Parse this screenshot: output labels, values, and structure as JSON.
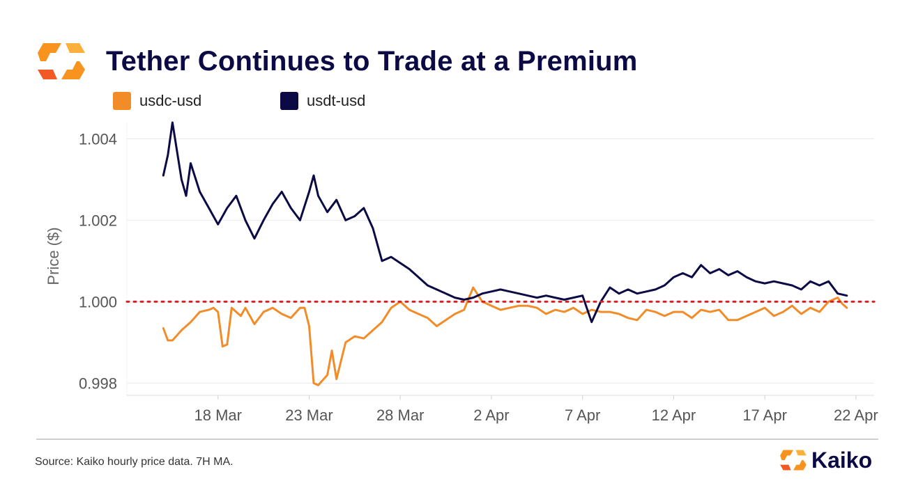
{
  "header": {
    "title": "Tether Continues to Trade at a Premium",
    "logo_icon": "kaiko-logo-icon"
  },
  "footer": {
    "source": "Source: Kaiko hourly price data. 7H MA.",
    "brand": "Kaiko"
  },
  "colors": {
    "usdc": "#f28c28",
    "usdt": "#0b0a44",
    "reference": "#e02020",
    "grid": "#e9e9f0",
    "brand_orange": "#f7931e"
  },
  "chart_data": {
    "type": "line",
    "title": "Tether Continues to Trade at a Premium",
    "xlabel": "",
    "ylabel": "Price ($)",
    "ylim": [
      0.9977,
      1.0044
    ],
    "yticks": [
      0.998,
      1.0,
      1.002,
      1.004
    ],
    "ytick_labels": [
      "0.998",
      "1.000",
      "1.002",
      "1.004"
    ],
    "xlim": [
      "2023-03-13",
      "2023-04-23"
    ],
    "xticks": [
      "2023-03-18",
      "2023-03-23",
      "2023-03-28",
      "2023-04-02",
      "2023-04-07",
      "2023-04-12",
      "2023-04-17",
      "2023-04-22"
    ],
    "xtick_labels": [
      "18 Mar",
      "23 Mar",
      "28 Mar",
      "2 Apr",
      "7 Apr",
      "12 Apr",
      "17 Apr",
      "22 Apr"
    ],
    "grid": true,
    "legend": "top-left",
    "reference_line": {
      "y": 1.0,
      "style": "dotted",
      "color": "#e02020"
    },
    "series": [
      {
        "name": "usdc-usd",
        "color": "#f28c28",
        "points": [
          [
            "2023-03-15 00:00",
            0.99935
          ],
          [
            "2023-03-15 06:00",
            0.99905
          ],
          [
            "2023-03-15 12:00",
            0.99905
          ],
          [
            "2023-03-16 00:00",
            0.9993
          ],
          [
            "2023-03-16 12:00",
            0.9995
          ],
          [
            "2023-03-17 00:00",
            0.99975
          ],
          [
            "2023-03-17 12:00",
            0.9998
          ],
          [
            "2023-03-17 18:00",
            0.99985
          ],
          [
            "2023-03-18 00:00",
            0.99975
          ],
          [
            "2023-03-18 06:00",
            0.9989
          ],
          [
            "2023-03-18 12:00",
            0.99895
          ],
          [
            "2023-03-18 18:00",
            0.99985
          ],
          [
            "2023-03-19 06:00",
            0.99965
          ],
          [
            "2023-03-19 12:00",
            0.99985
          ],
          [
            "2023-03-20 00:00",
            0.99945
          ],
          [
            "2023-03-20 12:00",
            0.99975
          ],
          [
            "2023-03-21 00:00",
            0.99985
          ],
          [
            "2023-03-21 12:00",
            0.9997
          ],
          [
            "2023-03-22 00:00",
            0.9996
          ],
          [
            "2023-03-22 12:00",
            0.99985
          ],
          [
            "2023-03-22 18:00",
            0.99985
          ],
          [
            "2023-03-23 00:00",
            0.9994
          ],
          [
            "2023-03-23 06:00",
            0.998
          ],
          [
            "2023-03-23 12:00",
            0.99795
          ],
          [
            "2023-03-24 00:00",
            0.9982
          ],
          [
            "2023-03-24 06:00",
            0.9988
          ],
          [
            "2023-03-24 12:00",
            0.9981
          ],
          [
            "2023-03-25 00:00",
            0.999
          ],
          [
            "2023-03-25 12:00",
            0.99915
          ],
          [
            "2023-03-26 00:00",
            0.9991
          ],
          [
            "2023-03-26 12:00",
            0.9993
          ],
          [
            "2023-03-27 00:00",
            0.9995
          ],
          [
            "2023-03-27 12:00",
            0.99985
          ],
          [
            "2023-03-28 00:00",
            1.0
          ],
          [
            "2023-03-28 12:00",
            0.9998
          ],
          [
            "2023-03-29 00:00",
            0.9997
          ],
          [
            "2023-03-29 12:00",
            0.9996
          ],
          [
            "2023-03-30 00:00",
            0.9994
          ],
          [
            "2023-03-30 12:00",
            0.99955
          ],
          [
            "2023-03-31 00:00",
            0.9997
          ],
          [
            "2023-03-31 12:00",
            0.9998
          ],
          [
            "2023-04-01 00:00",
            1.00035
          ],
          [
            "2023-04-01 12:00",
            1.0
          ],
          [
            "2023-04-02 00:00",
            0.9999
          ],
          [
            "2023-04-02 12:00",
            0.9998
          ],
          [
            "2023-04-03 00:00",
            0.99985
          ],
          [
            "2023-04-03 12:00",
            0.9999
          ],
          [
            "2023-04-04 00:00",
            0.9999
          ],
          [
            "2023-04-04 12:00",
            0.99985
          ],
          [
            "2023-04-05 00:00",
            0.9997
          ],
          [
            "2023-04-05 12:00",
            0.9998
          ],
          [
            "2023-04-06 00:00",
            0.99975
          ],
          [
            "2023-04-06 12:00",
            0.99985
          ],
          [
            "2023-04-07 00:00",
            0.9997
          ],
          [
            "2023-04-07 12:00",
            0.9998
          ],
          [
            "2023-04-08 00:00",
            0.99975
          ],
          [
            "2023-04-08 12:00",
            0.99975
          ],
          [
            "2023-04-09 00:00",
            0.9997
          ],
          [
            "2023-04-09 12:00",
            0.9996
          ],
          [
            "2023-04-10 00:00",
            0.99955
          ],
          [
            "2023-04-10 12:00",
            0.9998
          ],
          [
            "2023-04-11 00:00",
            0.99975
          ],
          [
            "2023-04-11 12:00",
            0.99965
          ],
          [
            "2023-04-12 00:00",
            0.99975
          ],
          [
            "2023-04-12 12:00",
            0.99975
          ],
          [
            "2023-04-13 00:00",
            0.9996
          ],
          [
            "2023-04-13 12:00",
            0.9998
          ],
          [
            "2023-04-14 00:00",
            0.99975
          ],
          [
            "2023-04-14 12:00",
            0.9998
          ],
          [
            "2023-04-15 00:00",
            0.99955
          ],
          [
            "2023-04-15 12:00",
            0.99955
          ],
          [
            "2023-04-16 00:00",
            0.99965
          ],
          [
            "2023-04-16 12:00",
            0.99975
          ],
          [
            "2023-04-17 00:00",
            0.99985
          ],
          [
            "2023-04-17 12:00",
            0.99965
          ],
          [
            "2023-04-18 00:00",
            0.99975
          ],
          [
            "2023-04-18 12:00",
            0.9999
          ],
          [
            "2023-04-19 00:00",
            0.9997
          ],
          [
            "2023-04-19 12:00",
            0.99985
          ],
          [
            "2023-04-20 00:00",
            0.99975
          ],
          [
            "2023-04-20 12:00",
            1.0
          ],
          [
            "2023-04-21 00:00",
            1.0001
          ],
          [
            "2023-04-21 06:00",
            0.99995
          ],
          [
            "2023-04-21 12:00",
            0.99985
          ]
        ]
      },
      {
        "name": "usdt-usd",
        "color": "#0b0a44",
        "points": [
          [
            "2023-03-15 00:00",
            1.0031
          ],
          [
            "2023-03-15 06:00",
            1.0036
          ],
          [
            "2023-03-15 12:00",
            1.0044
          ],
          [
            "2023-03-16 00:00",
            1.003
          ],
          [
            "2023-03-16 06:00",
            1.0026
          ],
          [
            "2023-03-16 12:00",
            1.0034
          ],
          [
            "2023-03-17 00:00",
            1.0027
          ],
          [
            "2023-03-17 12:00",
            1.0023
          ],
          [
            "2023-03-18 00:00",
            1.0019
          ],
          [
            "2023-03-18 12:00",
            1.0023
          ],
          [
            "2023-03-19 00:00",
            1.0026
          ],
          [
            "2023-03-19 12:00",
            1.002
          ],
          [
            "2023-03-20 00:00",
            1.00155
          ],
          [
            "2023-03-20 12:00",
            1.002
          ],
          [
            "2023-03-21 00:00",
            1.0024
          ],
          [
            "2023-03-21 12:00",
            1.0027
          ],
          [
            "2023-03-22 00:00",
            1.0023
          ],
          [
            "2023-03-22 12:00",
            1.002
          ],
          [
            "2023-03-23 00:00",
            1.0027
          ],
          [
            "2023-03-23 06:00",
            1.0031
          ],
          [
            "2023-03-23 12:00",
            1.0026
          ],
          [
            "2023-03-24 00:00",
            1.0022
          ],
          [
            "2023-03-24 12:00",
            1.0025
          ],
          [
            "2023-03-25 00:00",
            1.002
          ],
          [
            "2023-03-25 12:00",
            1.0021
          ],
          [
            "2023-03-26 00:00",
            1.0023
          ],
          [
            "2023-03-26 12:00",
            1.0018
          ],
          [
            "2023-03-27 00:00",
            1.001
          ],
          [
            "2023-03-27 12:00",
            1.0011
          ],
          [
            "2023-03-28 00:00",
            1.00095
          ],
          [
            "2023-03-28 12:00",
            1.0008
          ],
          [
            "2023-03-29 00:00",
            1.0006
          ],
          [
            "2023-03-29 12:00",
            1.0004
          ],
          [
            "2023-03-30 00:00",
            1.0003
          ],
          [
            "2023-03-30 12:00",
            1.0002
          ],
          [
            "2023-03-31 00:00",
            1.0001
          ],
          [
            "2023-03-31 12:00",
            1.00005
          ],
          [
            "2023-04-01 00:00",
            1.0001
          ],
          [
            "2023-04-01 12:00",
            1.0002
          ],
          [
            "2023-04-02 00:00",
            1.00025
          ],
          [
            "2023-04-02 12:00",
            1.0003
          ],
          [
            "2023-04-03 00:00",
            1.00025
          ],
          [
            "2023-04-03 12:00",
            1.0002
          ],
          [
            "2023-04-04 00:00",
            1.00015
          ],
          [
            "2023-04-04 12:00",
            1.0001
          ],
          [
            "2023-04-05 00:00",
            1.00015
          ],
          [
            "2023-04-05 12:00",
            1.0001
          ],
          [
            "2023-04-06 00:00",
            1.00005
          ],
          [
            "2023-04-06 12:00",
            1.0001
          ],
          [
            "2023-04-07 00:00",
            1.00015
          ],
          [
            "2023-04-07 12:00",
            0.9995
          ],
          [
            "2023-04-08 00:00",
            1.0
          ],
          [
            "2023-04-08 12:00",
            1.00035
          ],
          [
            "2023-04-09 00:00",
            1.0002
          ],
          [
            "2023-04-09 12:00",
            1.0003
          ],
          [
            "2023-04-10 00:00",
            1.0002
          ],
          [
            "2023-04-10 12:00",
            1.00025
          ],
          [
            "2023-04-11 00:00",
            1.0003
          ],
          [
            "2023-04-11 12:00",
            1.0004
          ],
          [
            "2023-04-12 00:00",
            1.0006
          ],
          [
            "2023-04-12 12:00",
            1.0007
          ],
          [
            "2023-04-13 00:00",
            1.0006
          ],
          [
            "2023-04-13 12:00",
            1.0009
          ],
          [
            "2023-04-14 00:00",
            1.0007
          ],
          [
            "2023-04-14 12:00",
            1.0008
          ],
          [
            "2023-04-15 00:00",
            1.00065
          ],
          [
            "2023-04-15 12:00",
            1.00075
          ],
          [
            "2023-04-16 00:00",
            1.0006
          ],
          [
            "2023-04-16 12:00",
            1.0005
          ],
          [
            "2023-04-17 00:00",
            1.00045
          ],
          [
            "2023-04-17 12:00",
            1.0005
          ],
          [
            "2023-04-18 00:00",
            1.00045
          ],
          [
            "2023-04-18 12:00",
            1.0004
          ],
          [
            "2023-04-19 00:00",
            1.0003
          ],
          [
            "2023-04-19 12:00",
            1.0005
          ],
          [
            "2023-04-20 00:00",
            1.0004
          ],
          [
            "2023-04-20 12:00",
            1.0005
          ],
          [
            "2023-04-21 00:00",
            1.0002
          ],
          [
            "2023-04-21 12:00",
            1.00015
          ]
        ]
      }
    ]
  }
}
